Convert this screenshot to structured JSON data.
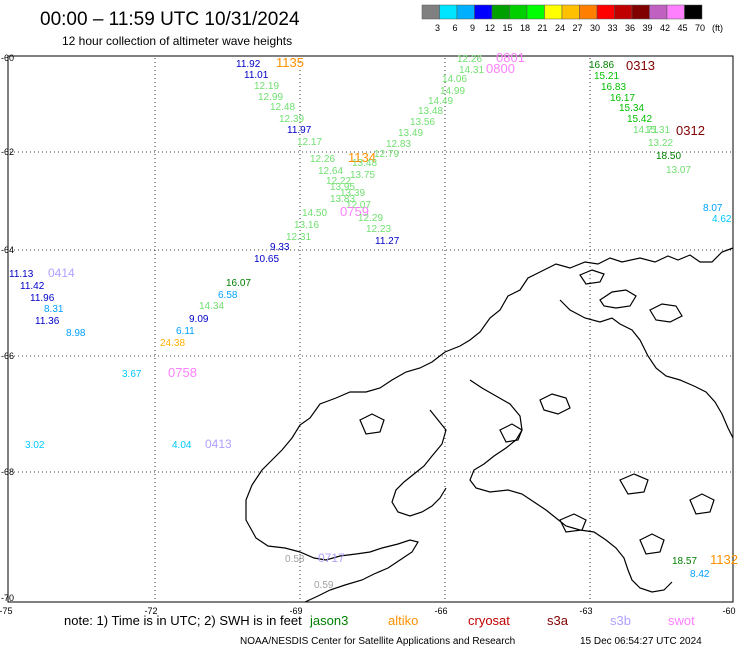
{
  "header": {
    "title": "00:00 – 11:59 UTC 10/31/2024",
    "subtitle": "12 hour collection of altimeter wave heights"
  },
  "color_scale": {
    "labels": [
      "3",
      "6",
      "9",
      "12",
      "15",
      "18",
      "21",
      "24",
      "27",
      "30",
      "33",
      "36",
      "39",
      "42",
      "45",
      "70",
      "(ft)"
    ],
    "colors": [
      "#808080",
      "#00e5ff",
      "#00b0ff",
      "#0000ff",
      "#00a000",
      "#00d000",
      "#00ff00",
      "#ffff00",
      "#ffc000",
      "#ff8000",
      "#ff0000",
      "#c00000",
      "#800000",
      "#c060c0",
      "#ff80ff",
      "#000000"
    ]
  },
  "axes": {
    "lon_labels": [
      "-75",
      "-72",
      "-69",
      "-66",
      "-63",
      "-60"
    ],
    "lat_labels": [
      "-60",
      "-62",
      "-64",
      "-66",
      "-68",
      "-70"
    ]
  },
  "wave_labels": [
    {
      "t": "11.92",
      "c": "#0000c8"
    },
    {
      "t": "1135",
      "c": "#ff9000"
    },
    {
      "t": "11.01",
      "c": "#0000c8"
    },
    {
      "t": "12.19",
      "c": "#70e070"
    },
    {
      "t": "12.99",
      "c": "#70e070"
    },
    {
      "t": "12.48",
      "c": "#70e070"
    },
    {
      "t": "12.39",
      "c": "#70e070"
    },
    {
      "t": "11.97",
      "c": "#0000c8"
    },
    {
      "t": "12.17",
      "c": "#70e070"
    },
    {
      "t": "12.26",
      "c": "#70e070"
    },
    {
      "t": "1134",
      "c": "#ff9000"
    },
    {
      "t": "12.64",
      "c": "#70e070"
    },
    {
      "t": "13.75",
      "c": "#70e070"
    },
    {
      "t": "12.22",
      "c": "#70e070"
    },
    {
      "t": "13.48",
      "c": "#70e070"
    },
    {
      "t": "13.95",
      "c": "#70e070"
    },
    {
      "t": "13.39",
      "c": "#70e070"
    },
    {
      "t": "13.83",
      "c": "#70e070"
    },
    {
      "t": "12.07",
      "c": "#70e070"
    },
    {
      "t": "14.50",
      "c": "#70e070"
    },
    {
      "t": "0759",
      "c": "#ff80ff"
    },
    {
      "t": "13.16",
      "c": "#70e070"
    },
    {
      "t": "12.29",
      "c": "#70e070"
    },
    {
      "t": "12.31",
      "c": "#70e070"
    },
    {
      "t": "12.23",
      "c": "#70e070"
    },
    {
      "t": "11.27",
      "c": "#0000c8"
    },
    {
      "t": "9.33",
      "c": "#0000c8"
    },
    {
      "t": "10.65",
      "c": "#0000c8"
    },
    {
      "t": "12.26",
      "c": "#70e070"
    },
    {
      "t": "0801",
      "c": "#ff80ff"
    },
    {
      "t": "14.31",
      "c": "#70e070"
    },
    {
      "t": "0800",
      "c": "#ff80ff"
    },
    {
      "t": "14.06",
      "c": "#70e070"
    },
    {
      "t": "14.99",
      "c": "#70e070"
    },
    {
      "t": "14.49",
      "c": "#70e070"
    },
    {
      "t": "13.48",
      "c": "#70e070"
    },
    {
      "t": "13.56",
      "c": "#70e070"
    },
    {
      "t": "13.49",
      "c": "#70e070"
    },
    {
      "t": "12.83",
      "c": "#70e070"
    },
    {
      "t": "12.79",
      "c": "#70e070"
    },
    {
      "t": "16.86",
      "c": "#008000"
    },
    {
      "t": "0313",
      "c": "#800000"
    },
    {
      "t": "15.21",
      "c": "#00c000"
    },
    {
      "t": "16.83",
      "c": "#00c000"
    },
    {
      "t": "16.17",
      "c": "#00c000"
    },
    {
      "t": "15.34",
      "c": "#00c000"
    },
    {
      "t": "15.42",
      "c": "#00c000"
    },
    {
      "t": "14.71",
      "c": "#70e070"
    },
    {
      "t": "15.31",
      "c": "#70e070"
    },
    {
      "t": "0312",
      "c": "#800000"
    },
    {
      "t": "13.22",
      "c": "#70e070"
    },
    {
      "t": "18.50",
      "c": "#008000"
    },
    {
      "t": "13.07",
      "c": "#70e070"
    },
    {
      "t": "8.07",
      "c": "#00a0ff"
    },
    {
      "t": "4.62",
      "c": "#00c8ff"
    },
    {
      "t": "11.13",
      "c": "#0000c8"
    },
    {
      "t": "0414",
      "c": "#b0a0ff"
    },
    {
      "t": "11.42",
      "c": "#0000c8"
    },
    {
      "t": "11.96",
      "c": "#0000c8"
    },
    {
      "t": "8.31",
      "c": "#00a0ff"
    },
    {
      "t": "11.36",
      "c": "#0000c8"
    },
    {
      "t": "8.98",
      "c": "#00a0ff"
    },
    {
      "t": "16.07",
      "c": "#008000"
    },
    {
      "t": "6.58",
      "c": "#00a0ff"
    },
    {
      "t": "14.34",
      "c": "#70e070"
    },
    {
      "t": "9.09",
      "c": "#0000c8"
    },
    {
      "t": "6.11",
      "c": "#00a0ff"
    },
    {
      "t": "24.38",
      "c": "#ffb000"
    },
    {
      "t": "3.67",
      "c": "#00c8ff"
    },
    {
      "t": "0758",
      "c": "#ff80ff"
    },
    {
      "t": "3.02",
      "c": "#00c8ff"
    },
    {
      "t": "4.04",
      "c": "#00c8ff"
    },
    {
      "t": "0413",
      "c": "#b0a0ff"
    },
    {
      "t": "0.58",
      "c": "#a0a0a0"
    },
    {
      "t": "0717",
      "c": "#b0a0ff"
    },
    {
      "t": "0.59",
      "c": "#a0a0a0"
    },
    {
      "t": "18.57",
      "c": "#008000"
    },
    {
      "t": "1132",
      "c": "#ff9000"
    },
    {
      "t": "8.42",
      "c": "#00a0ff"
    }
  ],
  "footer": {
    "note_prefix": "note: 1) Time is in UTC; 2) SWH is in feet",
    "satellites": [
      {
        "name": "jason3",
        "color": "#008000"
      },
      {
        "name": "altiko",
        "color": "#ff9000"
      },
      {
        "name": "cryosat",
        "color": "#c00000"
      },
      {
        "name": "s3a",
        "color": "#800000"
      },
      {
        "name": "s3b",
        "color": "#b0a0ff"
      },
      {
        "name": "swot",
        "color": "#ff80ff"
      }
    ],
    "credit": "NOAA/NESDIS Center for Satellite Applications and Research",
    "generated": "15 Dec 06:54:27 UTC 2024"
  }
}
